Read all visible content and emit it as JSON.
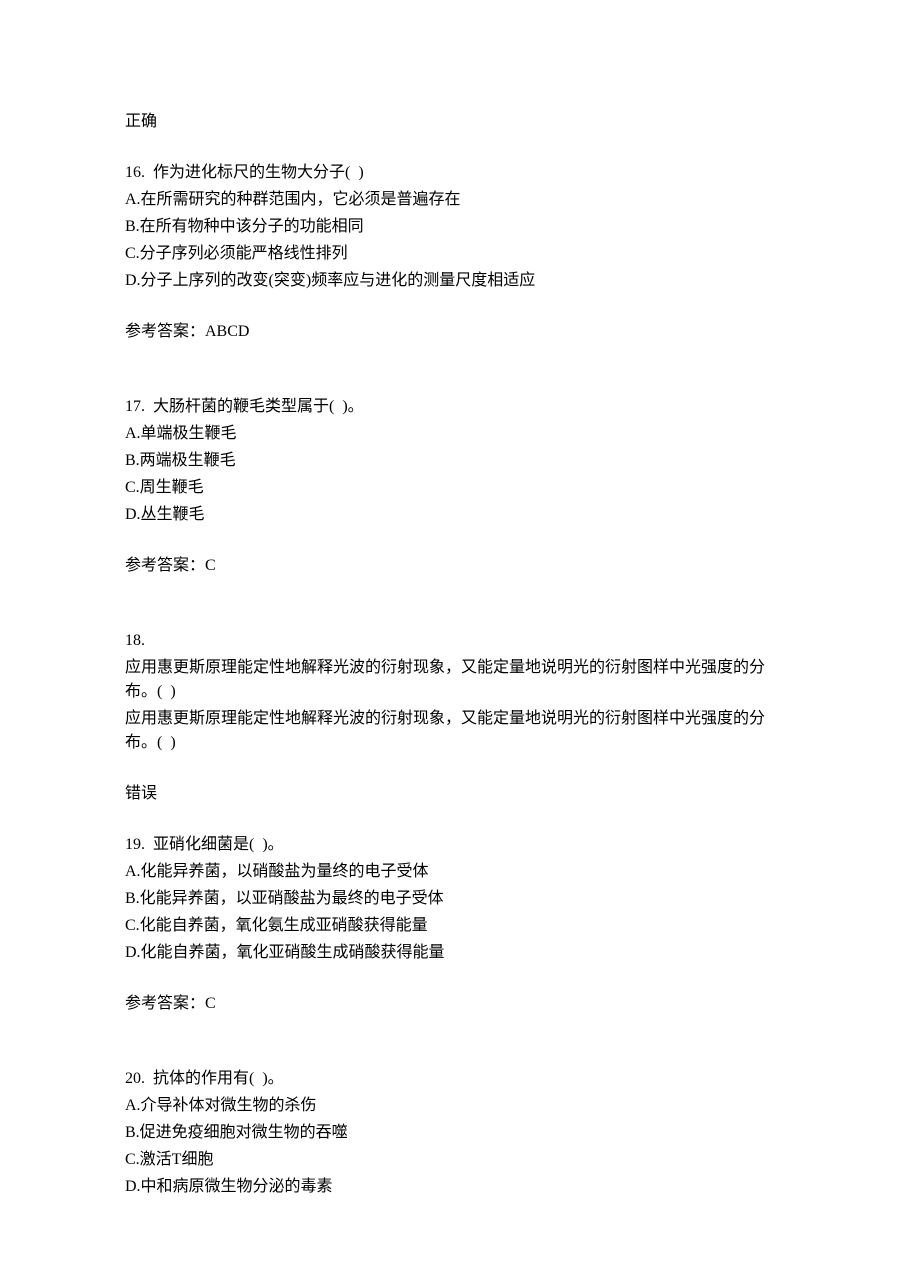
{
  "answer_correct": "正确",
  "q16": {
    "stem": "16.  作为进化标尺的生物大分子(  )",
    "a": "A.在所需研究的种群范围内，它必须是普遍存在",
    "b": "B.在所有物种中该分子的功能相同",
    "c": "C.分子序列必须能严格线性排列",
    "d": "D.分子上序列的改变(突变)频率应与进化的测量尺度相适应",
    "answer": "参考答案：ABCD"
  },
  "q17": {
    "stem": "17.  大肠杆菌的鞭毛类型属于(  )。",
    "a": "A.单端极生鞭毛",
    "b": "B.两端极生鞭毛",
    "c": "C.周生鞭毛",
    "d": "D.丛生鞭毛",
    "answer": "参考答案：C"
  },
  "q18": {
    "num": "18.",
    "line1": "应用惠更斯原理能定性地解释光波的衍射现象，又能定量地说明光的衍射图样中光强度的分布。(  )",
    "line2": "应用惠更斯原理能定性地解释光波的衍射现象，又能定量地说明光的衍射图样中光强度的分布。(  )",
    "answer": "错误"
  },
  "q19": {
    "stem": "19.  亚硝化细菌是(  )。",
    "a": "A.化能异养菌，以硝酸盐为量终的电子受体",
    "b": "B.化能异养菌，以亚硝酸盐为最终的电子受体",
    "c": "C.化能自养菌，氧化氨生成亚硝酸获得能量",
    "d": "D.化能自养菌，氧化亚硝酸生成硝酸获得能量",
    "answer": "参考答案：C"
  },
  "q20": {
    "stem": "20.  抗体的作用有(  )。",
    "a": "A.介导补体对微生物的杀伤",
    "b": "B.促进免疫细胞对微生物的吞噬",
    "c": "C.激活T细胞",
    "d": "D.中和病原微生物分泌的毒素"
  }
}
